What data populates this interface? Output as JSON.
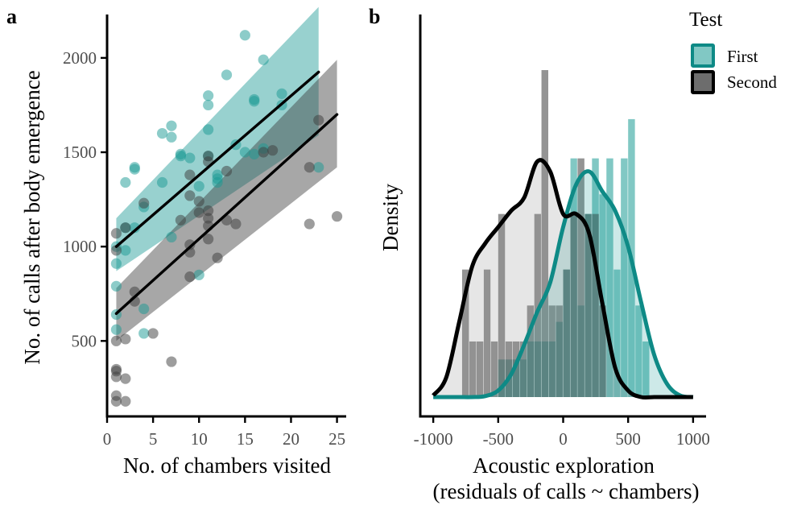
{
  "colors": {
    "first": "#1a9a94",
    "first_line": "#0e8a86",
    "second": "#3c3c3c",
    "fit": "#000000"
  },
  "chart_data": [
    {
      "panel": "a",
      "type": "scatter",
      "xlabel": "No. of chambers visited",
      "ylabel": "No. of calls after body emergence",
      "xlim": [
        0,
        26
      ],
      "ylim": [
        100,
        2230
      ],
      "xticks": [
        0,
        5,
        10,
        15,
        20,
        25
      ],
      "yticks": [
        500,
        1000,
        1500,
        2000
      ],
      "grid": false,
      "series": [
        {
          "name": "First",
          "color_key": "first",
          "points": [
            [
              1,
              640
            ],
            [
              1,
              560
            ],
            [
              1,
              790
            ],
            [
              1,
              910
            ],
            [
              1,
              1000
            ],
            [
              2,
              980
            ],
            [
              2,
              1100
            ],
            [
              2,
              1340
            ],
            [
              3,
              1410
            ],
            [
              3,
              1420
            ],
            [
              3,
              1100
            ],
            [
              4,
              540
            ],
            [
              4,
              670
            ],
            [
              4,
              1210
            ],
            [
              6,
              1340
            ],
            [
              6,
              1600
            ],
            [
              7,
              1640
            ],
            [
              7,
              1580
            ],
            [
              7,
              1050
            ],
            [
              8,
              1490
            ],
            [
              8,
              1480
            ],
            [
              9,
              1470
            ],
            [
              10,
              1320
            ],
            [
              10,
              850
            ],
            [
              11,
              1800
            ],
            [
              11,
              1750
            ],
            [
              11,
              1620
            ],
            [
              11,
              1480
            ],
            [
              12,
              1380
            ],
            [
              12,
              1360
            ],
            [
              12,
              1340
            ],
            [
              13,
              1910
            ],
            [
              14,
              1540
            ],
            [
              15,
              2120
            ],
            [
              15,
              1500
            ],
            [
              16,
              1780
            ],
            [
              16,
              1770
            ],
            [
              16,
              1490
            ],
            [
              17,
              1990
            ],
            [
              17,
              1520
            ],
            [
              19,
              1810
            ],
            [
              19,
              1750
            ],
            [
              23,
              1420
            ]
          ],
          "fit": {
            "x": [
              1,
              23
            ],
            "y": [
              1000,
              1925
            ]
          },
          "ci": {
            "x": [
              1,
              23
            ],
            "lower": [
              870,
              1590
            ],
            "upper": [
              1150,
              2270
            ]
          }
        },
        {
          "name": "Second",
          "color_key": "second",
          "points": [
            [
              1,
              1070
            ],
            [
              1,
              980
            ],
            [
              1,
              500
            ],
            [
              1,
              350
            ],
            [
              1,
              340
            ],
            [
              1,
              310
            ],
            [
              1,
              210
            ],
            [
              1,
              180
            ],
            [
              2,
              1100
            ],
            [
              2,
              510
            ],
            [
              2,
              300
            ],
            [
              2,
              180
            ],
            [
              3,
              760
            ],
            [
              3,
              710
            ],
            [
              4,
              1230
            ],
            [
              5,
              540
            ],
            [
              7,
              390
            ],
            [
              8,
              1140
            ],
            [
              9,
              1380
            ],
            [
              9,
              1270
            ],
            [
              9,
              1010
            ],
            [
              9,
              970
            ],
            [
              9,
              840
            ],
            [
              10,
              1240
            ],
            [
              10,
              1180
            ],
            [
              11,
              1480
            ],
            [
              11,
              1450
            ],
            [
              11,
              1190
            ],
            [
              11,
              1150
            ],
            [
              11,
              1110
            ],
            [
              11,
              1040
            ],
            [
              12,
              940
            ],
            [
              13,
              1400
            ],
            [
              13,
              1140
            ],
            [
              14,
              1120
            ],
            [
              17,
              1500
            ],
            [
              18,
              1510
            ],
            [
              22,
              1420
            ],
            [
              22,
              1120
            ],
            [
              23,
              1670
            ],
            [
              25,
              1160
            ]
          ],
          "fit": {
            "x": [
              1,
              25
            ],
            "y": [
              645,
              1700
            ]
          },
          "ci": {
            "x": [
              1,
              25
            ],
            "lower": [
              500,
              1420
            ],
            "upper": [
              780,
              1990
            ]
          }
        }
      ]
    },
    {
      "panel": "b",
      "type": "histogram+density",
      "xlabel_line1": "Acoustic exploration",
      "xlabel_line2": "(residuals of calls ~ chambers)",
      "ylabel": "Density",
      "xlim": [
        -1100,
        1100
      ],
      "xticks": [
        -1000,
        -500,
        0,
        500,
        1000
      ],
      "ylim_relative": [
        0,
        1.17
      ],
      "legend": {
        "title": "Test",
        "position": "top-right",
        "entries": [
          "First",
          "Second"
        ]
      },
      "histograms": [
        {
          "name": "First",
          "color_key": "first",
          "bins": [
            [
              -500,
              -444,
              0.115
            ],
            [
              -444,
              -389,
              0.115
            ],
            [
              -389,
              -333,
              0.115
            ],
            [
              -333,
              -278,
              0.115
            ],
            [
              -278,
              -222,
              0.17
            ],
            [
              -222,
              -167,
              0.17
            ],
            [
              -167,
              -111,
              0.17
            ],
            [
              -111,
              -56,
              0.17
            ],
            [
              -56,
              0,
              0.23
            ],
            [
              0,
              56,
              0.39
            ],
            [
              56,
              111,
              0.73
            ],
            [
              111,
              167,
              0.28
            ],
            [
              167,
              222,
              0.56
            ],
            [
              222,
              278,
              0.73
            ],
            [
              278,
              333,
              0.62
            ],
            [
              333,
              389,
              0.73
            ],
            [
              389,
              444,
              0.39
            ],
            [
              444,
              500,
              0.73
            ],
            [
              500,
              556,
              0.85
            ],
            [
              556,
              611,
              0.28
            ],
            [
              611,
              667,
              0.17
            ]
          ]
        },
        {
          "name": "Second",
          "color_key": "second",
          "bins": [
            [
              -778,
              -722,
              0.39
            ],
            [
              -722,
              -667,
              0.17
            ],
            [
              -667,
              -611,
              0.17
            ],
            [
              -611,
              -556,
              0.39
            ],
            [
              -556,
              -500,
              0.17
            ],
            [
              -500,
              -444,
              0.56
            ],
            [
              -444,
              -389,
              0.17
            ],
            [
              -389,
              -333,
              0.17
            ],
            [
              -333,
              -278,
              0.17
            ],
            [
              -278,
              -222,
              0.28
            ],
            [
              -222,
              -167,
              0.56
            ],
            [
              -167,
              -111,
              1.0
            ],
            [
              -111,
              -56,
              0.28
            ],
            [
              -56,
              0,
              0.28
            ],
            [
              0,
              56,
              0.39
            ],
            [
              56,
              111,
              0.56
            ],
            [
              111,
              167,
              0.73
            ],
            [
              167,
              222,
              0.56
            ],
            [
              222,
              278,
              0.56
            ],
            [
              278,
              333,
              0.28
            ]
          ]
        }
      ],
      "densities": [
        {
          "name": "First",
          "color_key": "first",
          "x": [
            -1000,
            -900,
            -800,
            -700,
            -600,
            -500,
            -400,
            -300,
            -200,
            -100,
            0,
            100,
            200,
            300,
            400,
            500,
            600,
            700,
            800,
            900,
            1000
          ],
          "y": [
            0.0,
            0.0,
            0.0,
            0.0,
            0.003,
            0.02,
            0.07,
            0.16,
            0.26,
            0.35,
            0.52,
            0.65,
            0.69,
            0.63,
            0.57,
            0.46,
            0.29,
            0.13,
            0.04,
            0.005,
            0.0
          ]
        },
        {
          "name": "Second",
          "color_key": "second",
          "x": [
            -1000,
            -900,
            -800,
            -700,
            -600,
            -500,
            -400,
            -300,
            -200,
            -100,
            0,
            100,
            200,
            300,
            400,
            500,
            600,
            700,
            800,
            900,
            1000
          ],
          "y": [
            0.005,
            0.06,
            0.23,
            0.4,
            0.47,
            0.52,
            0.57,
            0.61,
            0.72,
            0.69,
            0.56,
            0.56,
            0.5,
            0.29,
            0.09,
            0.02,
            0.0,
            0.0,
            0.0,
            0.0,
            0.0
          ]
        }
      ]
    }
  ]
}
